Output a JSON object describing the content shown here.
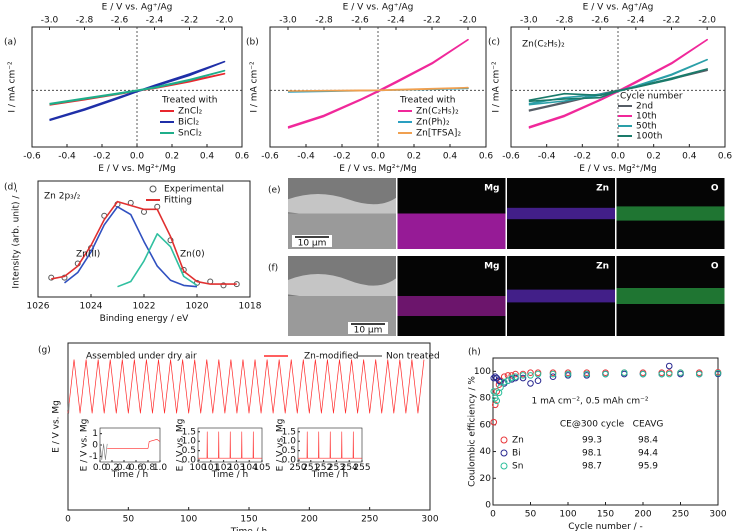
{
  "chart_data": [
    {
      "type": "line",
      "label": "(a)",
      "x2label": "E / V vs. Ag⁺/Ag",
      "xlabel": "E / V vs. Mg²⁺/Mg",
      "ylabel": "I / mA cm⁻²",
      "xlim": [
        -0.6,
        0.6
      ],
      "xticks": [
        -0.6,
        -0.4,
        -0.2,
        {
          "value": 0,
          "label": "0.0"
        },
        0.2,
        0.4,
        0.6
      ],
      "x2lim": [
        -3.1,
        -1.9
      ],
      "x2ticks": [
        {
          "value": -3,
          "label": "-3.0"
        },
        -2.8,
        -2.6,
        -2.4,
        -2.2,
        {
          "value": -2,
          "label": "-2.0"
        }
      ],
      "ylim": [
        -17,
        19
      ],
      "zero_lines": true,
      "legend_title": "Treated with",
      "x": [
        -0.5,
        -0.3,
        -0.1,
        0,
        0.1,
        0.3,
        0.5,
        0.3,
        0.1,
        0,
        -0.1,
        -0.3,
        -0.5
      ],
      "series": [
        {
          "name": "ZnCl₂",
          "color": "#e8272e",
          "values": [
            -4.2,
            -2.6,
            -0.9,
            -0.1,
            0.8,
            2.8,
            5.0,
            2.6,
            0.6,
            -0.2,
            -1.1,
            -2.8,
            -4.4
          ]
        },
        {
          "name": "BiCl₂",
          "color": "#1f2fa8",
          "values": [
            -8.8,
            -5.6,
            -2.0,
            -0.3,
            1.5,
            4.9,
            8.6,
            4.5,
            1.2,
            -0.4,
            -2.3,
            -5.9,
            -9.0
          ]
        },
        {
          "name": "SnCl₂",
          "color": "#1fae8a",
          "values": [
            -4.0,
            -2.4,
            -0.8,
            0,
            0.9,
            3.2,
            5.9,
            3.0,
            0.7,
            -0.1,
            -1.0,
            -2.6,
            -4.2
          ]
        }
      ]
    },
    {
      "type": "line",
      "label": "(b)",
      "x2label": "E / V vs. Ag⁺/Ag",
      "xlabel": "E / V vs. Mg²⁺/Mg",
      "ylabel": "I / mA cm⁻²",
      "xlim": [
        -0.6,
        0.6
      ],
      "xticks": [
        -0.6,
        -0.4,
        -0.2,
        {
          "value": 0,
          "label": "0.0"
        },
        0.2,
        0.4,
        0.6
      ],
      "x2lim": [
        -3.1,
        -1.9
      ],
      "x2ticks": [
        {
          "value": -3,
          "label": "-3.0"
        },
        -2.8,
        -2.6,
        -2.4,
        -2.2,
        {
          "value": -2,
          "label": "-2.0"
        }
      ],
      "ylim": [
        -17,
        19
      ],
      "zero_lines": true,
      "legend_title": "Treated with",
      "x": [
        -0.5,
        -0.3,
        -0.1,
        0,
        0.1,
        0.3,
        0.5,
        0.3,
        0.1,
        0,
        -0.1,
        -0.3,
        -0.5
      ],
      "series": [
        {
          "name": "Zn(C₂H₅)₂",
          "color": "#f0289a",
          "values": [
            -11,
            -7.5,
            -2.8,
            -0.2,
            2.6,
            8.2,
            15.2,
            8,
            2.3,
            -0.4,
            -3,
            -7.8,
            -11.3
          ]
        },
        {
          "name": "Zn(Ph)₂",
          "color": "#2a9fc0",
          "values": [
            -0.5,
            -0.3,
            -0.1,
            0,
            0.1,
            0.3,
            0.6,
            0.4,
            0.1,
            0,
            -0.1,
            -0.3,
            -0.5
          ]
        },
        {
          "name": "Zn[TFSA]₂",
          "color": "#f0a050",
          "values": [
            -0.2,
            -0.1,
            0,
            0,
            0.1,
            0.4,
            0.8,
            0.5,
            0.2,
            0,
            -0.1,
            -0.1,
            -0.2
          ]
        }
      ]
    },
    {
      "type": "line",
      "label": "(c)",
      "x2label": "E / V vs. Ag⁺/Ag",
      "xlabel": "E / V vs. Mg²⁺/Mg",
      "ylabel": "I / mA cm⁻²",
      "xlim": [
        -0.6,
        0.6
      ],
      "xticks": [
        -0.6,
        -0.4,
        -0.2,
        {
          "value": 0,
          "label": "0.0"
        },
        0.2,
        0.4,
        0.6
      ],
      "x2lim": [
        -3.1,
        -1.9
      ],
      "x2ticks": [
        {
          "value": -3,
          "label": "-3.0"
        },
        -2.8,
        -2.6,
        -2.4,
        -2.2,
        {
          "value": -2,
          "label": "-2.0"
        }
      ],
      "ylim": [
        -17,
        19
      ],
      "zero_lines": true,
      "legend_title": "Cycle number",
      "annotation": "Zn(C₂H₅)₂",
      "x": [
        -0.5,
        -0.3,
        -0.1,
        0,
        0.1,
        0.3,
        0.5,
        0.3,
        0.1,
        0,
        -0.1,
        -0.3,
        -0.5
      ],
      "series": [
        {
          "name": "2nd",
          "color": "#555d66",
          "values": [
            -6,
            -3.6,
            -1.1,
            0,
            1.1,
            3.5,
            6,
            3.4,
            1,
            -0.1,
            -1.2,
            -3.8,
            -6.2
          ]
        },
        {
          "name": "10th",
          "color": "#f0289a",
          "values": [
            -11,
            -7.5,
            -2.8,
            -0.2,
            2.6,
            8.2,
            15.2,
            8,
            2.3,
            -0.4,
            -3,
            -7.8,
            -11.3
          ]
        },
        {
          "name": "50th",
          "color": "#2a9fa8",
          "values": [
            -4,
            -2.2,
            -1.2,
            -0.2,
            1.3,
            4.8,
            9.2,
            4.6,
            1.1,
            -0.3,
            -1.5,
            -3.2,
            -4.3
          ]
        },
        {
          "name": "100th",
          "color": "#1a7a6a",
          "values": [
            -3,
            -1,
            -1.5,
            -0.1,
            1,
            3.6,
            6.4,
            3.3,
            0.9,
            -0.2,
            -2.2,
            -2.6,
            -3.3
          ]
        }
      ]
    },
    {
      "type": "line",
      "label": "(d)",
      "xlabel": "Binding energy / eV",
      "ylabel": "Intensity (arb. unit) / -",
      "annotation": "Zn 2p₃/₂",
      "xlim": [
        1026,
        1018
      ],
      "xticks": [
        1026,
        1024,
        1022,
        1020,
        1018
      ],
      "ylim": [
        0,
        0.9
      ],
      "x": [
        1025.5,
        1025,
        1024.5,
        1024,
        1023.5,
        1023,
        1022.5,
        1022,
        1021.5,
        1021,
        1020.5,
        1020,
        1019.5,
        1019,
        1018.5
      ],
      "series": [
        {
          "name": "Experimental",
          "color": "#555555",
          "marker": "circle",
          "values": [
            0.15,
            0.15,
            0.26,
            0.38,
            0.63,
            0.72,
            0.73,
            0.66,
            0.7,
            0.44,
            0.21,
            0.11,
            0.12,
            0.09,
            0.1
          ]
        },
        {
          "name": "Fitting",
          "color": "#e03030",
          "values": [
            0.14,
            0.16,
            0.24,
            0.4,
            0.6,
            0.74,
            0.71,
            0.68,
            0.68,
            0.47,
            0.2,
            0.12,
            0.1,
            0.1,
            0.1
          ]
        },
        {
          "name": "Zn(II)",
          "color": "#3050c0",
          "in_legend": false,
          "values": [
            null,
            0.11,
            0.19,
            0.35,
            0.56,
            0.7,
            0.64,
            0.43,
            0.24,
            0.13,
            0.09,
            0.08,
            null,
            null,
            null
          ]
        },
        {
          "name": "Zn(0)",
          "color": "#30c0a0",
          "in_legend": false,
          "values": [
            null,
            null,
            null,
            null,
            null,
            0.08,
            0.12,
            0.28,
            0.49,
            0.39,
            0.16,
            0.09,
            null,
            null,
            null
          ]
        }
      ]
    },
    {
      "type": "line",
      "label": "(g)",
      "xlabel": "Time / h",
      "ylabel": "E / V vs. Mg",
      "annotation": "Assembled under dry air",
      "xlim": [
        0,
        300
      ],
      "xticks": [
        0,
        50,
        100,
        150,
        200,
        250,
        300
      ],
      "ylim": [
        -3,
        2
      ],
      "series": [
        {
          "name": "Zn-modified",
          "color": "#ff2a2a",
          "x": [
            0,
            5,
            10,
            15,
            20,
            25,
            30,
            35,
            40,
            45,
            50,
            55,
            60,
            65,
            70,
            75,
            80,
            85,
            90,
            95,
            100,
            105,
            110,
            115,
            120,
            125,
            130,
            135,
            140,
            145,
            150,
            155,
            160,
            165,
            170,
            175,
            180,
            185,
            190,
            195,
            200,
            205,
            210,
            215,
            220,
            225,
            230,
            235,
            240,
            245,
            250,
            255,
            260,
            265,
            270,
            275,
            280,
            285,
            290,
            295
          ],
          "values": [
            -0.1,
            1.5,
            -0.1,
            1.5,
            -0.1,
            1.5,
            -0.1,
            1.5,
            -0.1,
            1.5,
            -0.1,
            1.5,
            -0.1,
            1.5,
            -0.1,
            1.5,
            -0.1,
            1.5,
            -0.1,
            1.5,
            -0.1,
            1.5,
            -0.1,
            1.5,
            -0.1,
            1.5,
            -0.1,
            1.5,
            -0.1,
            1.5,
            -0.1,
            1.5,
            -0.1,
            1.5,
            -0.1,
            1.5,
            -0.1,
            1.5,
            -0.1,
            1.5,
            -0.1,
            1.5,
            -0.1,
            1.5,
            -0.1,
            1.5,
            -0.1,
            1.5,
            -0.1,
            1.5,
            -0.1,
            1.5,
            -0.1,
            1.5,
            -0.1,
            1.5,
            -0.1,
            1.5,
            -0.1,
            1.5
          ]
        },
        {
          "name": "Non treated",
          "color": "#777777",
          "x": [
            0,
            0.3,
            0.6,
            1.0
          ],
          "values": [
            0,
            0.2,
            -0.1,
            0.2
          ]
        }
      ]
    },
    {
      "type": "line",
      "xlabel": "Time / h",
      "ylabel": "E / V vs. Mg",
      "xlim": [
        0,
        1
      ],
      "xticks": [
        {
          "value": 0,
          "label": "0.0"
        },
        0.2,
        0.4,
        0.6,
        0.8,
        {
          "value": 1,
          "label": "1.0"
        }
      ],
      "ylim": [
        -1.5,
        1.5
      ],
      "yticks": [
        -1,
        0,
        1
      ],
      "series": [
        {
          "name": "Non treated",
          "color": "#777777",
          "x": [
            0,
            0.03,
            0.06,
            0.09,
            0.12
          ],
          "values": [
            0.1,
            -1.3,
            0.1,
            -1.3,
            0.1
          ]
        },
        {
          "name": "Zn-modified",
          "color": "#ff2a2a",
          "x": [
            0.12,
            0.2,
            0.4,
            0.6,
            0.8,
            0.82,
            0.95,
            1.0
          ],
          "values": [
            -0.3,
            -0.3,
            -0.3,
            -0.3,
            -0.3,
            0.3,
            0.5,
            0.3
          ]
        }
      ]
    },
    {
      "type": "line",
      "xlabel": "Time / h",
      "ylabel": "E / V vs. Mg",
      "xlim": [
        100,
        105
      ],
      "xticks": [
        100,
        101,
        102,
        103,
        104,
        105
      ],
      "ylim": [
        -0.1,
        1.7
      ],
      "yticks": [
        {
          "value": 0,
          "label": "0.0"
        },
        0.5,
        {
          "value": 1,
          "label": "1.0"
        },
        1.5
      ],
      "series": [
        {
          "name": "Zn-modified",
          "color": "#ff2a2a",
          "x": [
            100,
            100.7,
            100.72,
            100.74,
            101.6,
            101.62,
            101.64,
            102.5,
            102.52,
            102.54,
            103.4,
            103.42,
            103.44,
            104.3,
            104.32,
            104.34,
            105
          ],
          "values": [
            0.1,
            0.1,
            1.5,
            0.1,
            0.1,
            1.5,
            0.1,
            0.1,
            1.5,
            0.1,
            0.1,
            1.5,
            0.1,
            0.1,
            1.5,
            0.1,
            0.1
          ]
        }
      ]
    },
    {
      "type": "line",
      "xlabel": "Time / h",
      "ylabel": "E / V vs. Mg",
      "xlim": [
        250,
        255
      ],
      "xticks": [
        250,
        251,
        252,
        253,
        254,
        255
      ],
      "ylim": [
        -0.1,
        1.7
      ],
      "yticks": [
        {
          "value": 0,
          "label": "0.0"
        },
        0.5,
        {
          "value": 1,
          "label": "1.0"
        },
        1.5
      ],
      "series": [
        {
          "name": "Zn-modified",
          "color": "#ff2a2a",
          "x": [
            250,
            250.7,
            250.72,
            250.74,
            251.6,
            251.62,
            251.64,
            252.5,
            252.52,
            252.54,
            253.4,
            253.42,
            253.44,
            254.3,
            254.32,
            254.34,
            255
          ],
          "values": [
            0.1,
            0.1,
            1.5,
            0.1,
            0.1,
            1.5,
            0.1,
            0.1,
            1.5,
            0.1,
            0.1,
            1.5,
            0.1,
            0.1,
            1.5,
            0.1,
            0.1
          ]
        }
      ]
    },
    {
      "type": "scatter",
      "label": "(h)",
      "xlabel": "Cycle number / -",
      "ylabel": "Coulombic efficiency / %",
      "annotation": "1 mA cm⁻², 0.5 mAh cm⁻²",
      "xlim": [
        0,
        300
      ],
      "xticks": [
        0,
        50,
        100,
        150,
        200,
        250,
        300
      ],
      "ylim": [
        0,
        110
      ],
      "yticks": [
        0,
        20,
        40,
        60,
        80,
        100
      ],
      "x": [
        1,
        3,
        5,
        8,
        10,
        15,
        20,
        25,
        30,
        40,
        50,
        60,
        80,
        100,
        125,
        150,
        175,
        200,
        225,
        235,
        250,
        275,
        300
      ],
      "series": [
        {
          "name": "Zn",
          "color": "#e8363a",
          "values": [
            62,
            75,
            85,
            90,
            93,
            96,
            97,
            97,
            98,
            98,
            99,
            99,
            99,
            99,
            99,
            99,
            99,
            99,
            99,
            99,
            99,
            99,
            99.3
          ]
        },
        {
          "name": "Bi",
          "color": "#27278f",
          "values": [
            95,
            96,
            95,
            93,
            92,
            91,
            93,
            94,
            95,
            95,
            91,
            93,
            96,
            97,
            97,
            98,
            98,
            98,
            98,
            104,
            98,
            98,
            98.1
          ]
        },
        {
          "name": "Sn",
          "color": "#2bbf9b",
          "values": [
            85,
            80,
            78,
            84,
            88,
            92,
            93,
            95,
            96,
            97,
            97,
            98,
            98,
            98,
            98,
            98,
            99,
            98,
            98,
            98,
            99,
            98,
            98.7
          ]
        }
      ],
      "ce_table": {
        "headers": [
          "CE@300 cycle",
          "CEAVG"
        ],
        "rows": [
          [
            99.3,
            98.4
          ],
          [
            98.1,
            94.4
          ],
          [
            98.7,
            95.9
          ]
        ]
      }
    }
  ],
  "micrographs": [
    {
      "label": "(e)",
      "channels": [
        "Mg",
        "Zn",
        "O"
      ],
      "scale_bar": "10 μm"
    },
    {
      "label": "(f)",
      "channels": [
        "Mg",
        "Zn",
        "O"
      ],
      "scale_bar": "10 μm"
    }
  ]
}
